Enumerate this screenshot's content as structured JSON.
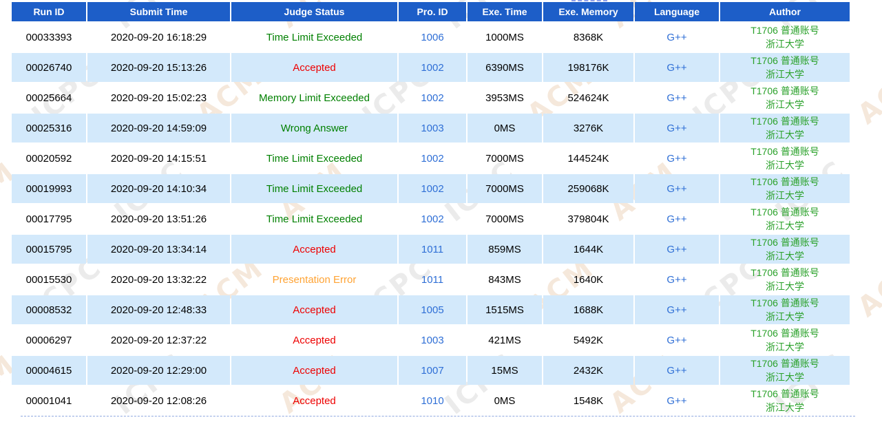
{
  "theme": {
    "header_bg": "#1d5ec8",
    "header_text": "#ffffff",
    "row_alt_bg": "#d3e9fb",
    "row_bg": "transparent",
    "text_color": "#000000",
    "link_color": "#2f6fd6",
    "author_color": "#2aa12a",
    "status_colors": {
      "Accepted": "#ee0000",
      "Time Limit Exceeded": "#008000",
      "Memory Limit Exceeded": "#008000",
      "Wrong Answer": "#008000",
      "Presentation Error": "#ffa333"
    }
  },
  "watermark": {
    "texts": [
      "ACM",
      "ICPC"
    ],
    "colors": [
      "#f5e8db",
      "#ebebeb"
    ]
  },
  "table": {
    "columns": [
      {
        "key": "run_id",
        "label": "Run ID"
      },
      {
        "key": "submit_time",
        "label": "Submit Time"
      },
      {
        "key": "status",
        "label": "Judge Status"
      },
      {
        "key": "pro_id",
        "label": "Pro. ID"
      },
      {
        "key": "exe_time",
        "label": "Exe. Time"
      },
      {
        "key": "exe_memory",
        "label": "Exe. Memory"
      },
      {
        "key": "language",
        "label": "Language"
      },
      {
        "key": "author",
        "label": "Author"
      }
    ],
    "author_line1": "T1706  普通账号",
    "author_line2": "浙江大学",
    "rows": [
      {
        "run_id": "00033393",
        "submit_time": "2020-09-20 16:18:29",
        "status": "Time Limit Exceeded",
        "pro_id": "1006",
        "exe_time": "1000MS",
        "exe_memory": "8368K",
        "language": "G++"
      },
      {
        "run_id": "00026740",
        "submit_time": "2020-09-20 15:13:26",
        "status": "Accepted",
        "pro_id": "1002",
        "exe_time": "6390MS",
        "exe_memory": "198176K",
        "language": "G++"
      },
      {
        "run_id": "00025664",
        "submit_time": "2020-09-20 15:02:23",
        "status": "Memory Limit Exceeded",
        "pro_id": "1002",
        "exe_time": "3953MS",
        "exe_memory": "524624K",
        "language": "G++"
      },
      {
        "run_id": "00025316",
        "submit_time": "2020-09-20 14:59:09",
        "status": "Wrong Answer",
        "pro_id": "1003",
        "exe_time": "0MS",
        "exe_memory": "3276K",
        "language": "G++"
      },
      {
        "run_id": "00020592",
        "submit_time": "2020-09-20 14:15:51",
        "status": "Time Limit Exceeded",
        "pro_id": "1002",
        "exe_time": "7000MS",
        "exe_memory": "144524K",
        "language": "G++"
      },
      {
        "run_id": "00019993",
        "submit_time": "2020-09-20 14:10:34",
        "status": "Time Limit Exceeded",
        "pro_id": "1002",
        "exe_time": "7000MS",
        "exe_memory": "259068K",
        "language": "G++"
      },
      {
        "run_id": "00017795",
        "submit_time": "2020-09-20 13:51:26",
        "status": "Time Limit Exceeded",
        "pro_id": "1002",
        "exe_time": "7000MS",
        "exe_memory": "379804K",
        "language": "G++"
      },
      {
        "run_id": "00015795",
        "submit_time": "2020-09-20 13:34:14",
        "status": "Accepted",
        "pro_id": "1011",
        "exe_time": "859MS",
        "exe_memory": "1644K",
        "language": "G++"
      },
      {
        "run_id": "00015530",
        "submit_time": "2020-09-20 13:32:22",
        "status": "Presentation Error",
        "pro_id": "1011",
        "exe_time": "843MS",
        "exe_memory": "1640K",
        "language": "G++"
      },
      {
        "run_id": "00008532",
        "submit_time": "2020-09-20 12:48:33",
        "status": "Accepted",
        "pro_id": "1005",
        "exe_time": "1515MS",
        "exe_memory": "1688K",
        "language": "G++"
      },
      {
        "run_id": "00006297",
        "submit_time": "2020-09-20 12:37:22",
        "status": "Accepted",
        "pro_id": "1003",
        "exe_time": "421MS",
        "exe_memory": "5492K",
        "language": "G++"
      },
      {
        "run_id": "00004615",
        "submit_time": "2020-09-20 12:29:00",
        "status": "Accepted",
        "pro_id": "1007",
        "exe_time": "15MS",
        "exe_memory": "2432K",
        "language": "G++"
      },
      {
        "run_id": "00001041",
        "submit_time": "2020-09-20 12:08:26",
        "status": "Accepted",
        "pro_id": "1010",
        "exe_time": "0MS",
        "exe_memory": "1548K",
        "language": "G++"
      }
    ]
  }
}
